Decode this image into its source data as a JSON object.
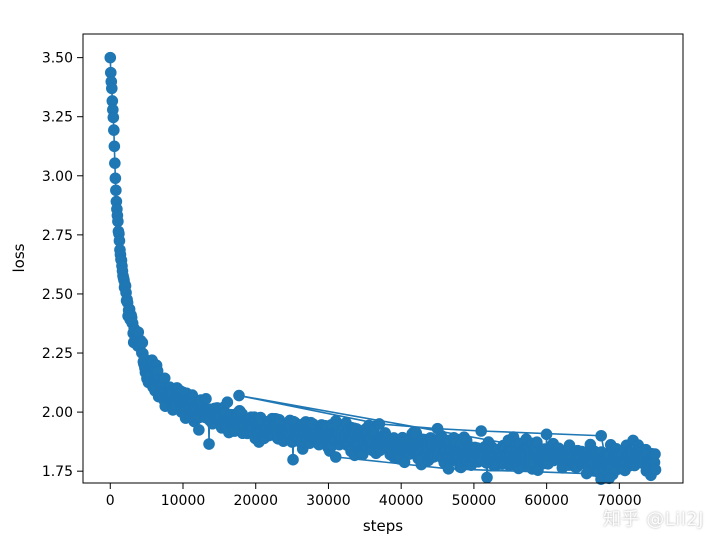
{
  "chart_data": {
    "type": "scatter",
    "title": "",
    "xlabel": "steps",
    "ylabel": "loss",
    "xlim": [
      -3750,
      78750
    ],
    "ylim": [
      1.7,
      3.6
    ],
    "xticks": [
      0,
      10000,
      20000,
      30000,
      40000,
      50000,
      60000,
      70000
    ],
    "xtick_labels": [
      "0",
      "10000",
      "20000",
      "30000",
      "40000",
      "50000",
      "60000",
      "70000"
    ],
    "yticks": [
      1.75,
      2.0,
      2.25,
      2.5,
      2.75,
      3.0,
      3.25,
      3.5
    ],
    "ytick_labels": [
      "1.75",
      "2.00",
      "2.25",
      "2.50",
      "2.75",
      "3.00",
      "3.25",
      "3.50"
    ],
    "grid": false,
    "marker": "circle",
    "line": true,
    "color": "#1f77b4",
    "series": [
      {
        "points": [
          [
            0,
            3.5
          ],
          [
            100,
            3.41
          ],
          [
            200,
            3.38
          ],
          [
            300,
            3.3
          ],
          [
            400,
            3.26
          ],
          [
            500,
            3.19
          ],
          [
            600,
            3.07
          ],
          [
            700,
            2.99
          ],
          [
            800,
            2.93
          ],
          [
            900,
            2.86
          ],
          [
            1000,
            2.81
          ],
          [
            1200,
            2.74
          ],
          [
            1400,
            2.67
          ],
          [
            1600,
            2.62
          ],
          [
            1800,
            2.57
          ],
          [
            2000,
            2.53
          ],
          [
            2300,
            2.47
          ],
          [
            2600,
            2.42
          ],
          [
            3000,
            2.37
          ],
          [
            3500,
            2.32
          ],
          [
            4000,
            2.28
          ],
          [
            4500,
            2.24
          ],
          [
            5000,
            2.2
          ],
          [
            6000,
            2.15
          ],
          [
            7000,
            2.11
          ],
          [
            8000,
            2.08
          ],
          [
            9000,
            2.06
          ],
          [
            10000,
            2.04
          ],
          [
            12000,
            2.01
          ],
          [
            14000,
            1.99
          ],
          [
            16000,
            1.97
          ],
          [
            18000,
            1.96
          ],
          [
            20000,
            1.94
          ],
          [
            22500,
            1.93
          ],
          [
            25000,
            1.92
          ],
          [
            27500,
            1.91
          ],
          [
            30000,
            1.9
          ],
          [
            32500,
            1.89
          ],
          [
            35000,
            1.88
          ],
          [
            37500,
            1.87
          ],
          [
            40000,
            1.86
          ],
          [
            42500,
            1.85
          ],
          [
            45000,
            1.84
          ],
          [
            47500,
            1.83
          ],
          [
            50000,
            1.83
          ],
          [
            52500,
            1.82
          ],
          [
            55000,
            1.82
          ],
          [
            57500,
            1.81
          ],
          [
            60000,
            1.81
          ],
          [
            62500,
            1.81
          ],
          [
            65000,
            1.8
          ],
          [
            67500,
            1.8
          ],
          [
            70000,
            1.8
          ],
          [
            72500,
            1.8
          ],
          [
            75000,
            1.8
          ]
        ],
        "spread": [
          [
            0,
            0.0
          ],
          [
            3000,
            0.05
          ],
          [
            5000,
            0.07
          ],
          [
            10000,
            0.06
          ],
          [
            20000,
            0.055
          ],
          [
            30000,
            0.05
          ],
          [
            40000,
            0.05
          ],
          [
            45000,
            0.06
          ],
          [
            50000,
            0.05
          ],
          [
            60000,
            0.05
          ],
          [
            70000,
            0.055
          ],
          [
            75000,
            0.05
          ]
        ]
      }
    ],
    "outliers": [
      [
        17700,
        2.07
      ],
      [
        37000,
        1.95
      ],
      [
        45000,
        1.93
      ],
      [
        51000,
        1.92
      ],
      [
        67500,
        1.9
      ],
      [
        68600,
        1.72
      ],
      [
        65500,
        1.74
      ],
      [
        46500,
        1.76
      ],
      [
        31000,
        1.81
      ]
    ]
  },
  "watermark": "知乎 @Lil2J"
}
